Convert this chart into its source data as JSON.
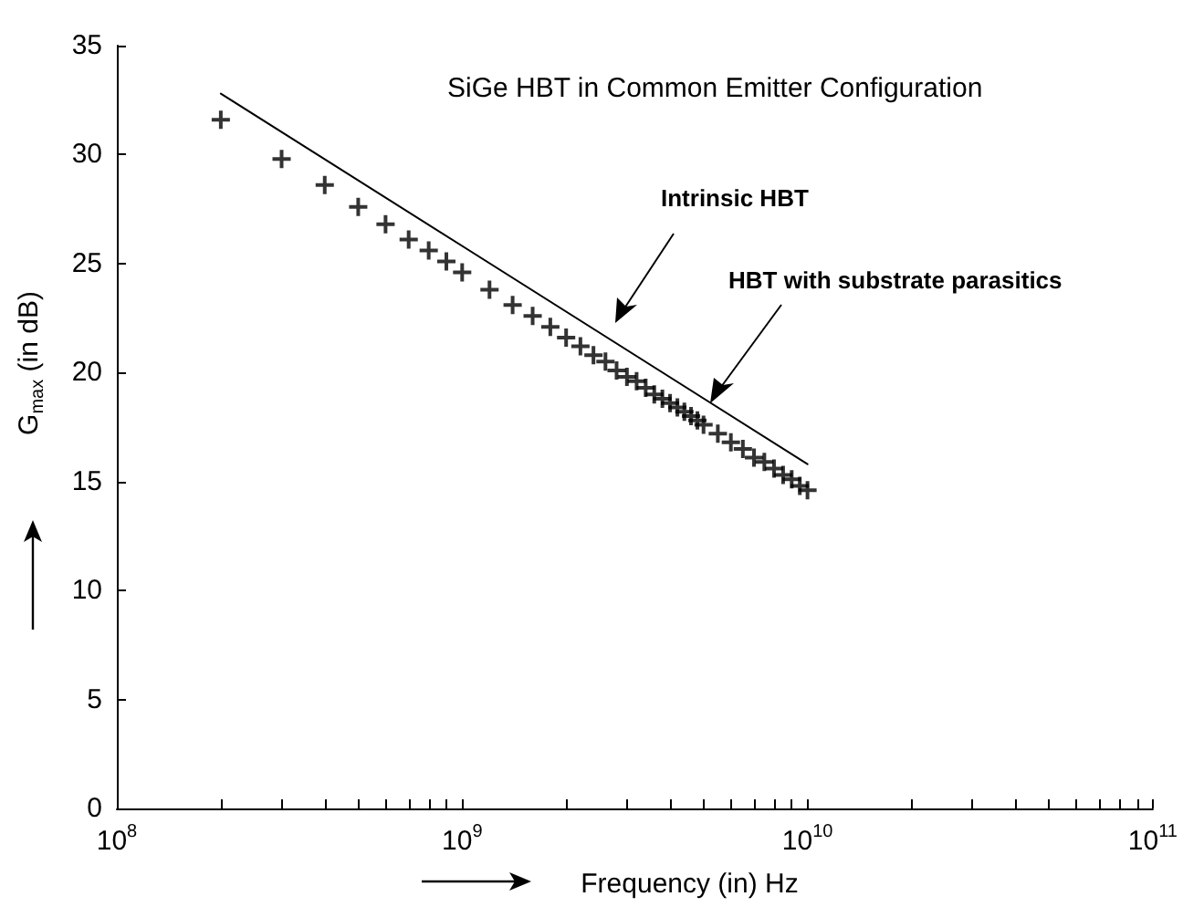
{
  "chart_data": {
    "type": "scatter",
    "title": "SiGe HBT in Common Emitter Configuration",
    "xlabel": "Frequency (in) Hz",
    "ylabel": "G$_{max}$ (in dB)",
    "log": "x",
    "xlim": [
      100000000,
      100000000000
    ],
    "xticks": [
      {
        "value": 100000000,
        "label": "10$^{8}$"
      },
      {
        "value": 200000000,
        "label": null
      },
      {
        "value": 300000000,
        "label": null
      },
      {
        "value": 400000000,
        "label": null
      },
      {
        "value": 500000000,
        "label": null
      },
      {
        "value": 600000000,
        "label": null
      },
      {
        "value": 700000000,
        "label": null
      },
      {
        "value": 800000000,
        "label": null
      },
      {
        "value": 900000000,
        "label": null
      },
      {
        "value": 1000000000,
        "label": "10$^{9}$"
      },
      {
        "value": 2000000000,
        "label": null
      },
      {
        "value": 3000000000,
        "label": null
      },
      {
        "value": 4000000000,
        "label": null
      },
      {
        "value": 5000000000,
        "label": null
      },
      {
        "value": 6000000000,
        "label": null
      },
      {
        "value": 7000000000,
        "label": null
      },
      {
        "value": 8000000000,
        "label": null
      },
      {
        "value": 9000000000,
        "label": null
      },
      {
        "value": 10000000000,
        "label": "10$^{10}$"
      },
      {
        "value": 20000000000,
        "label": null
      },
      {
        "value": 30000000000,
        "label": null
      },
      {
        "value": 40000000000,
        "label": null
      },
      {
        "value": 50000000000,
        "label": null
      },
      {
        "value": 60000000000,
        "label": null
      },
      {
        "value": 70000000000,
        "label": null
      },
      {
        "value": 80000000000,
        "label": null
      },
      {
        "value": 90000000000,
        "label": null
      },
      {
        "value": 100000000000,
        "label": "10$^{11}$"
      }
    ],
    "ylim": [
      0,
      35
    ],
    "yticks": [
      0,
      5,
      10,
      15,
      20,
      25,
      30,
      35
    ],
    "grid": false,
    "series": [
      {
        "type": "line",
        "marker": "none",
        "color": "#000000",
        "x": [
          200000000,
          10000000000
        ],
        "values": [
          32.8,
          15.8
        ]
      },
      {
        "marker": "cross",
        "color": "#000000",
        "x": [
          200000000,
          300000000,
          400000000,
          500000000,
          600000000,
          700000000,
          800000000,
          900000000,
          1000000000,
          1200000000,
          1400000000,
          1600000000,
          1800000000,
          2000000000,
          2200000000,
          2400000000,
          2600000000,
          2800000000,
          3000000000,
          3200000000,
          3400000000,
          3600000000,
          3800000000,
          4000000000,
          4200000000,
          4400000000,
          4600000000,
          4800000000,
          5000000000,
          5500000000,
          6000000000,
          6500000000,
          7000000000,
          7500000000,
          8000000000,
          8500000000,
          9000000000,
          9500000000,
          10000000000
        ],
        "values": [
          31.6,
          29.8,
          28.6,
          27.6,
          26.8,
          26.1,
          25.6,
          25.1,
          24.6,
          23.8,
          23.1,
          22.6,
          22.1,
          21.6,
          21.2,
          20.8,
          20.5,
          20.1,
          19.8,
          19.6,
          19.3,
          19.0,
          18.8,
          18.6,
          18.4,
          18.2,
          18.0,
          17.8,
          17.6,
          17.2,
          16.8,
          16.5,
          16.1,
          15.9,
          15.6,
          15.3,
          15.1,
          14.8,
          14.6
        ]
      }
    ],
    "annotations": [
      "Intrinsic HBT",
      "HBT with substrate parasitics"
    ]
  }
}
